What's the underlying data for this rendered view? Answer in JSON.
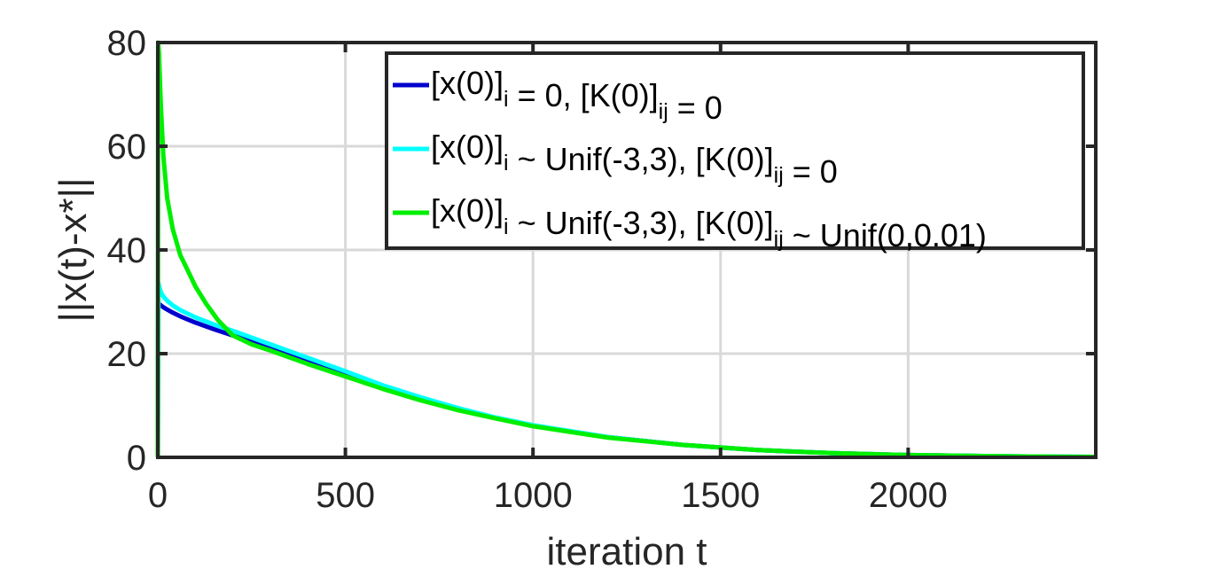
{
  "chart_data": {
    "type": "line",
    "xlabel": "iteration t",
    "ylabel": "||x(t)-x*||",
    "xlim": [
      0,
      2500
    ],
    "ylim": [
      0,
      80
    ],
    "xticks": [
      0,
      500,
      1000,
      1500,
      2000
    ],
    "yticks": [
      0,
      20,
      40,
      60,
      80
    ],
    "grid": true,
    "legend_position": "top-right",
    "series": [
      {
        "name": "[x(0)]i = 0, [K(0)]ij = 0",
        "legend_main": [
          "[x(0)]",
          " = 0, [K(0)]",
          " = 0"
        ],
        "legend_subs": [
          "i",
          "ij"
        ],
        "color": "#0000cd",
        "x": [
          0,
          1,
          2,
          5,
          10,
          20,
          40,
          60,
          100,
          150,
          200,
          300,
          400,
          500,
          600,
          700,
          800,
          900,
          1000,
          1200,
          1400,
          1500,
          1600,
          1800,
          2000,
          2200,
          2400,
          2500
        ],
        "y": [
          0,
          29.5,
          29.6,
          29.5,
          29.2,
          28.7,
          27.9,
          27.2,
          26.0,
          24.7,
          23.5,
          21.0,
          18.6,
          16.2,
          13.6,
          11.3,
          9.3,
          7.6,
          6.1,
          3.9,
          2.4,
          1.9,
          1.4,
          0.8,
          0.45,
          0.25,
          0.12,
          0.08
        ]
      },
      {
        "name": "[x(0)]i ~ Unif(-3,3), [K(0)]ij = 0",
        "legend_main": [
          "[x(0)]",
          " ~ Unif(-3,3), [K(0)]",
          " = 0"
        ],
        "legend_subs": [
          "i",
          "ij"
        ],
        "color": "#00ffff",
        "x": [
          0,
          2,
          5,
          10,
          15,
          25,
          40,
          60,
          100,
          150,
          200,
          300,
          400,
          500,
          600,
          700,
          800,
          900,
          1000,
          1200,
          1400,
          1500,
          1600,
          1800,
          2000,
          2200,
          2400,
          2500
        ],
        "y": [
          0,
          33.5,
          32.6,
          31.6,
          31.0,
          30.2,
          29.3,
          28.4,
          27.0,
          25.6,
          24.4,
          21.8,
          19.2,
          16.6,
          13.9,
          11.6,
          9.5,
          7.7,
          6.2,
          3.9,
          2.4,
          1.9,
          1.4,
          0.8,
          0.45,
          0.25,
          0.12,
          0.08
        ]
      },
      {
        "name": "[x(0)]i ~ Unif(-3,3), [K(0)]ij ~ Unif(0,0.01)",
        "legend_main": [
          "[x(0)]",
          " ~ Unif(-3,3), [K(0)]",
          " ~ Unif(0,0.01)"
        ],
        "legend_subs": [
          "i",
          "ij"
        ],
        "color": "#00ee00",
        "x": [
          0,
          1,
          3,
          8,
          15,
          25,
          40,
          60,
          80,
          100,
          130,
          160,
          200,
          250,
          300,
          400,
          500,
          600,
          700,
          800,
          900,
          1000,
          1200,
          1400,
          1500,
          1600,
          1800,
          2000,
          2200,
          2400,
          2500
        ],
        "y": [
          0,
          80,
          78,
          68,
          58,
          50,
          44,
          39,
          36,
          33,
          29.5,
          26.5,
          23.5,
          21.8,
          20.6,
          18.0,
          15.6,
          13.2,
          11.0,
          9.1,
          7.5,
          6.0,
          3.8,
          2.4,
          1.9,
          1.4,
          0.8,
          0.45,
          0.25,
          0.12,
          0.08
        ]
      }
    ]
  }
}
